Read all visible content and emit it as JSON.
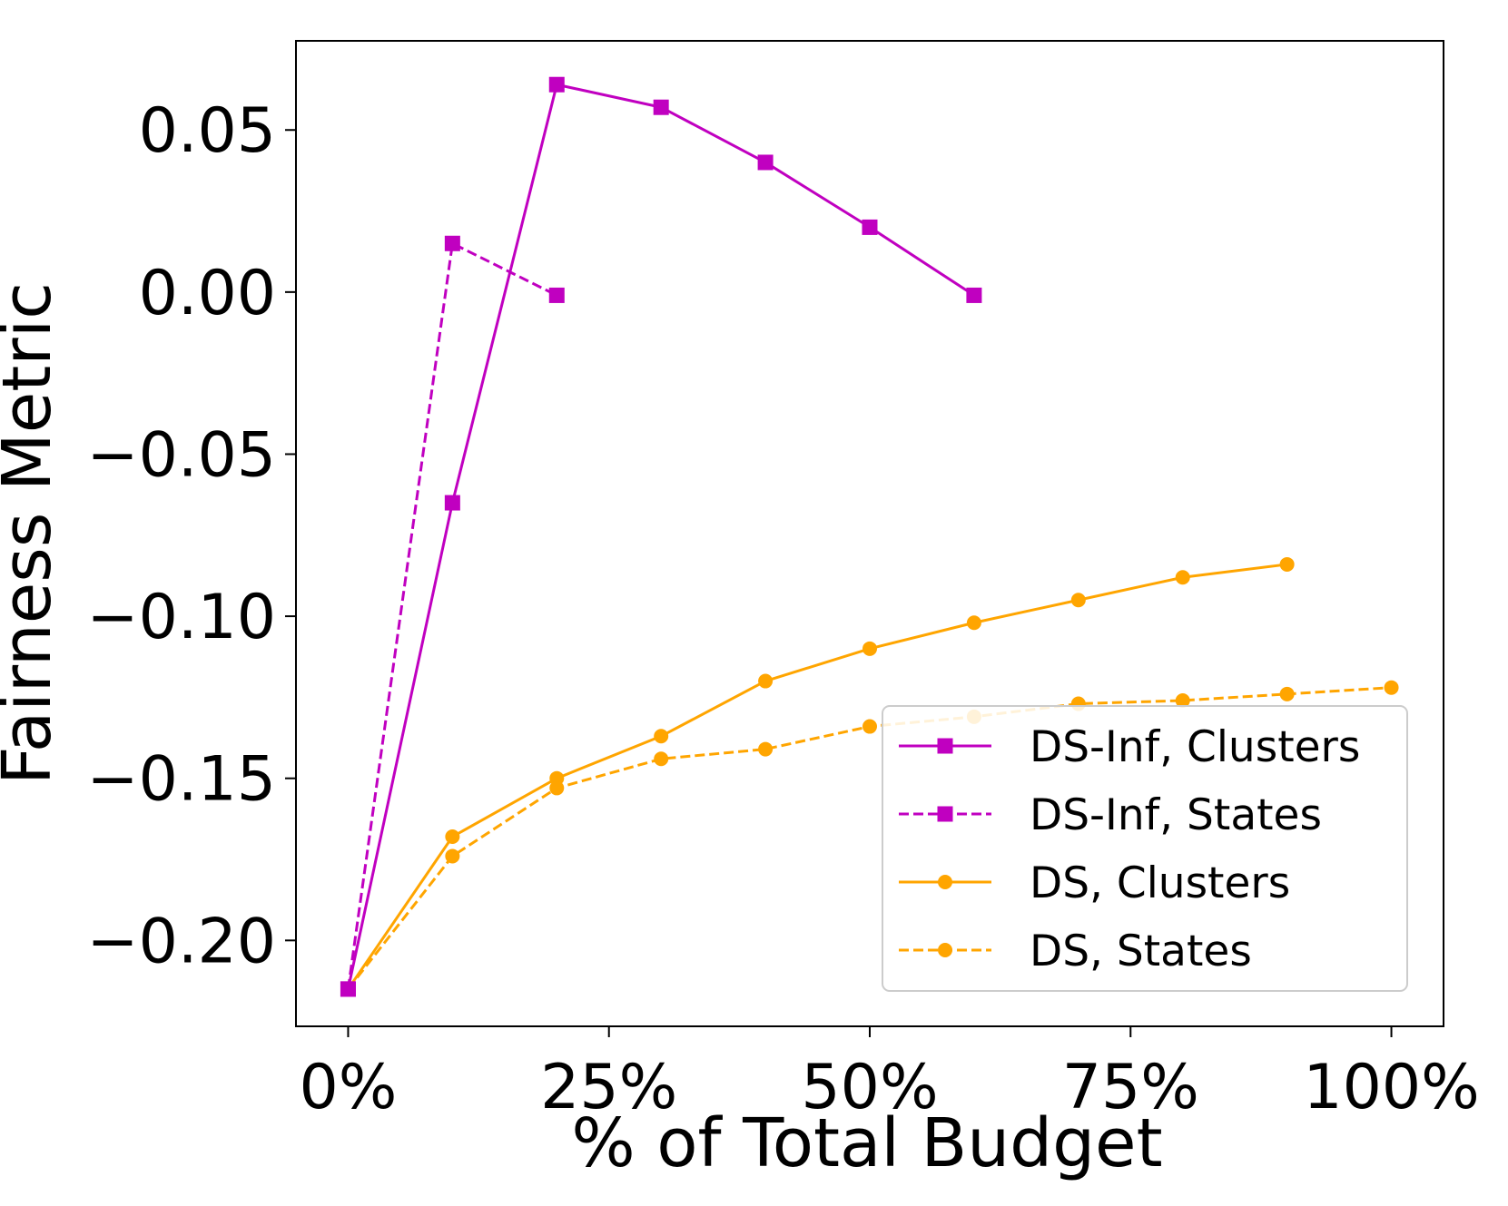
{
  "chart_data": {
    "type": "line",
    "title": "",
    "xlabel": "% of Total Budget",
    "ylabel": "Fairness Metric",
    "xlim": [
      -0.05,
      1.05
    ],
    "ylim": [
      -0.2265,
      0.0775
    ],
    "x_ticks": [
      {
        "value": 0.0,
        "label": "0%"
      },
      {
        "value": 0.25,
        "label": "25%"
      },
      {
        "value": 0.5,
        "label": "50%"
      },
      {
        "value": 0.75,
        "label": "75%"
      },
      {
        "value": 1.0,
        "label": "100%"
      }
    ],
    "y_ticks": [
      {
        "value": 0.05,
        "label": "0.05"
      },
      {
        "value": 0.0,
        "label": "0.00"
      },
      {
        "value": -0.05,
        "label": "−0.05"
      },
      {
        "value": -0.1,
        "label": "−0.10"
      },
      {
        "value": -0.15,
        "label": "−0.15"
      },
      {
        "value": -0.2,
        "label": "−0.20"
      }
    ],
    "grid": false,
    "legend_position": "lower-right",
    "series": [
      {
        "name": "DS-Inf, Clusters",
        "color": "#c000c0",
        "marker": "square",
        "linestyle": "solid",
        "x": [
          0.0,
          0.1,
          0.2,
          0.3,
          0.4,
          0.5,
          0.6
        ],
        "y": [
          -0.215,
          -0.065,
          0.064,
          0.057,
          0.04,
          0.02,
          -0.001
        ]
      },
      {
        "name": "DS-Inf, States",
        "color": "#c000c0",
        "marker": "square",
        "linestyle": "dashed",
        "x": [
          0.0,
          0.1,
          0.2
        ],
        "y": [
          -0.215,
          0.015,
          -0.001
        ]
      },
      {
        "name": "DS, Clusters",
        "color": "#ffa500",
        "marker": "circle",
        "linestyle": "solid",
        "x": [
          0.0,
          0.1,
          0.2,
          0.3,
          0.4,
          0.5,
          0.6,
          0.7,
          0.8,
          0.9
        ],
        "y": [
          -0.215,
          -0.168,
          -0.15,
          -0.137,
          -0.12,
          -0.11,
          -0.102,
          -0.095,
          -0.088,
          -0.084
        ]
      },
      {
        "name": "DS, States",
        "color": "#ffa500",
        "marker": "circle",
        "linestyle": "dashed",
        "x": [
          0.0,
          0.1,
          0.2,
          0.3,
          0.4,
          0.5,
          0.6,
          0.7,
          0.8,
          0.9,
          1.0
        ],
        "y": [
          -0.215,
          -0.174,
          -0.153,
          -0.144,
          -0.141,
          -0.134,
          -0.131,
          -0.127,
          -0.126,
          -0.124,
          -0.122
        ]
      }
    ]
  }
}
